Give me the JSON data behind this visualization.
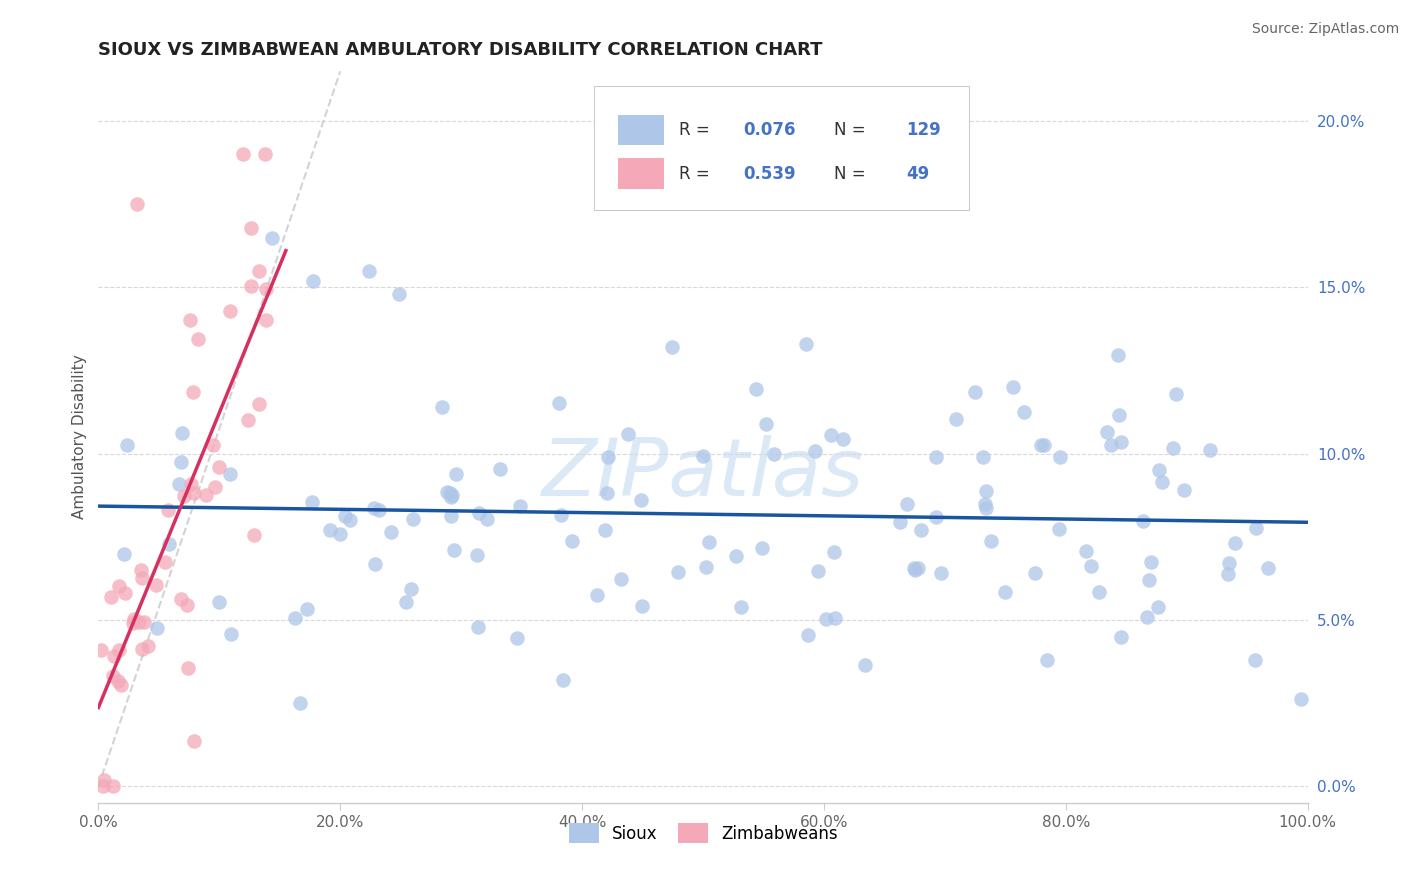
{
  "title": "SIOUX VS ZIMBABWEAN AMBULATORY DISABILITY CORRELATION CHART",
  "source": "Source: ZipAtlas.com",
  "ylabel": "Ambulatory Disability",
  "xlim": [
    0.0,
    1.0
  ],
  "ylim": [
    -0.005,
    0.215
  ],
  "sioux_R": 0.076,
  "sioux_N": 129,
  "zimb_R": 0.539,
  "zimb_N": 49,
  "sioux_color": "#aec6e8",
  "zimb_color": "#f4a8b8",
  "sioux_line_color": "#1a56a0",
  "zimb_line_color": "#d63060",
  "trend_ref_color": "#c8c8c8",
  "watermark": "ZIPatlas",
  "background_color": "#ffffff",
  "grid_color": "#d8d8d8",
  "ytick_color": "#4472c4",
  "yticks": [
    0.0,
    0.05,
    0.1,
    0.15,
    0.2
  ],
  "ytick_labels": [
    "0.0%",
    "5.0%",
    "10.0%",
    "15.0%",
    "20.0%"
  ],
  "xticks": [
    0.0,
    0.2,
    0.4,
    0.6,
    0.8,
    1.0
  ],
  "xtick_labels": [
    "0.0%",
    "20.0%",
    "40.0%",
    "60.0%",
    "80.0%",
    "100.0%"
  ],
  "legend_sioux_label": "Sioux",
  "legend_zimb_label": "Zimbabweans"
}
